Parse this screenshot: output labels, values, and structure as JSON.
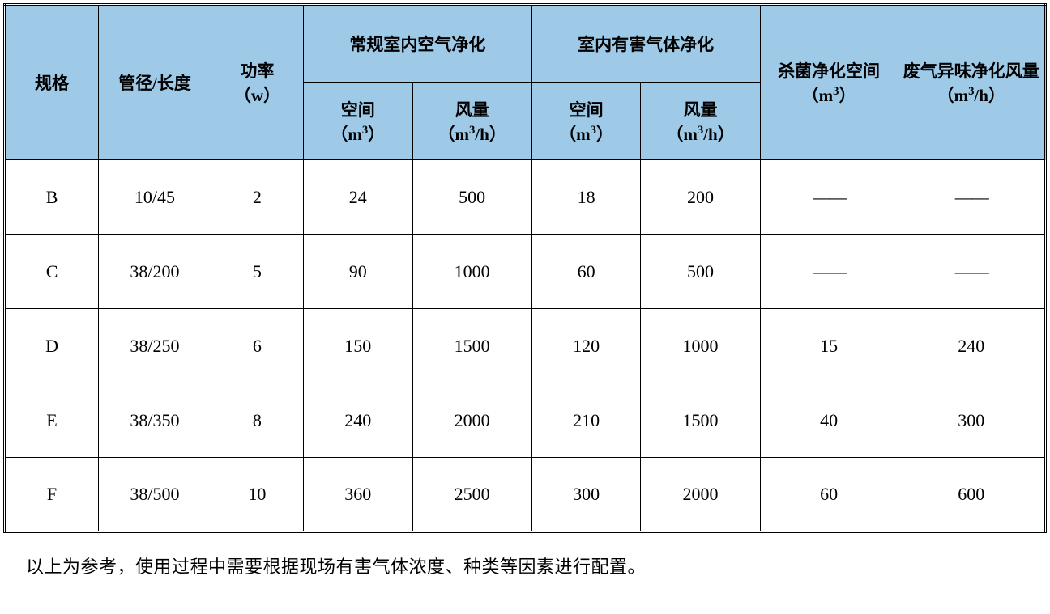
{
  "table": {
    "header_bg_color": "#9ecae8",
    "border_color": "#000000",
    "background_color": "#ffffff",
    "columns": {
      "spec": "规格",
      "pipe": "管径/长度",
      "power_label": "功率",
      "power_unit": "（w）",
      "indoor_normal": "常规室内空气净化",
      "indoor_harmful": "室内有害气体净化",
      "space_label": "空间",
      "space_unit_prefix": "（m",
      "space_unit_suffix": "）",
      "flow_label": "风量",
      "flow_unit_prefix": "（m",
      "flow_unit_suffix": "/h）",
      "sterilize_label": "杀菌净化空间",
      "sterilize_unit_prefix": "（m",
      "sterilize_unit_suffix": "）",
      "exhaust_label": "废气异味净化风量",
      "exhaust_unit_prefix": "（m",
      "exhaust_unit_suffix": "/h）"
    },
    "rows": [
      {
        "spec": "B",
        "pipe": "10/45",
        "power": "2",
        "space1": "24",
        "flow1": "500",
        "space2": "18",
        "flow2": "200",
        "steril": "——",
        "exhaust": "——"
      },
      {
        "spec": "C",
        "pipe": "38/200",
        "power": "5",
        "space1": "90",
        "flow1": "1000",
        "space2": "60",
        "flow2": "500",
        "steril": "——",
        "exhaust": "——"
      },
      {
        "spec": "D",
        "pipe": "38/250",
        "power": "6",
        "space1": "150",
        "flow1": "1500",
        "space2": "120",
        "flow2": "1000",
        "steril": "15",
        "exhaust": "240"
      },
      {
        "spec": "E",
        "pipe": "38/350",
        "power": "8",
        "space1": "240",
        "flow1": "2000",
        "space2": "210",
        "flow2": "1500",
        "steril": "40",
        "exhaust": "300"
      },
      {
        "spec": "F",
        "pipe": "38/500",
        "power": "10",
        "space1": "360",
        "flow1": "2500",
        "space2": "300",
        "flow2": "2000",
        "steril": "60",
        "exhaust": "600"
      }
    ]
  },
  "footnote": "以上为参考，使用过程中需要根据现场有害气体浓度、种类等因素进行配置。"
}
